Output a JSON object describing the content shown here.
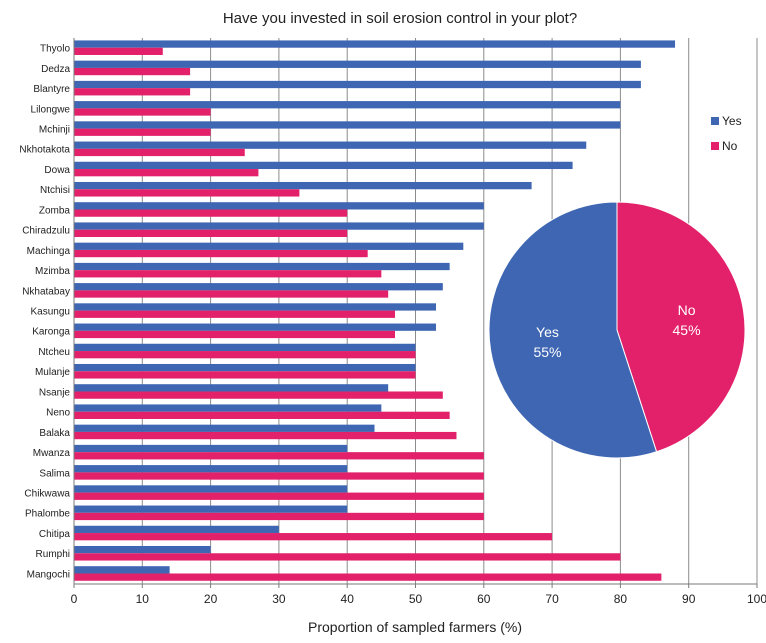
{
  "chart_data": [
    {
      "type": "bar",
      "orientation": "horizontal",
      "title": "Have you invested in soil erosion control in your plot?",
      "xlabel": "Proportion of sampled farmers (%)",
      "ylabel": "",
      "xlim": [
        0,
        100
      ],
      "xticks": [
        0,
        10,
        20,
        30,
        40,
        50,
        60,
        70,
        80,
        90,
        100
      ],
      "grid": "vertical",
      "legend_position": "right",
      "categories": [
        "Thyolo",
        "Dedza",
        "Blantyre",
        "Lilongwe",
        "Mchinji",
        "Nkhotakota",
        "Dowa",
        "Ntchisi",
        "Zomba",
        "Chiradzulu",
        "Machinga",
        "Mzimba",
        "Nkhatabay",
        "Kasungu",
        "Karonga",
        "Ntcheu",
        "Mulanje",
        "Nsanje",
        "Neno",
        "Balaka",
        "Mwanza",
        "Salima",
        "Chikwawa",
        "Phalombe",
        "Chitipa",
        "Rumphi",
        "Mangochi"
      ],
      "series": [
        {
          "name": "Yes",
          "color": "#3E66B2",
          "values": [
            88,
            83,
            83,
            80,
            80,
            75,
            73,
            67,
            60,
            60,
            57,
            55,
            54,
            53,
            53,
            50,
            50,
            46,
            45,
            44,
            40,
            40,
            40,
            40,
            30,
            20,
            14
          ]
        },
        {
          "name": "No",
          "color": "#E3216A",
          "values": [
            13,
            17,
            17,
            20,
            20,
            25,
            27,
            33,
            40,
            40,
            43,
            45,
            46,
            47,
            47,
            50,
            50,
            54,
            55,
            56,
            60,
            60,
            60,
            60,
            70,
            80,
            86
          ]
        }
      ]
    },
    {
      "type": "pie",
      "slices": [
        {
          "label": "Yes",
          "value": 55,
          "display": "55%",
          "color": "#3E66B2"
        },
        {
          "label": "No",
          "value": 45,
          "display": "45%",
          "color": "#E3216A"
        }
      ]
    }
  ]
}
